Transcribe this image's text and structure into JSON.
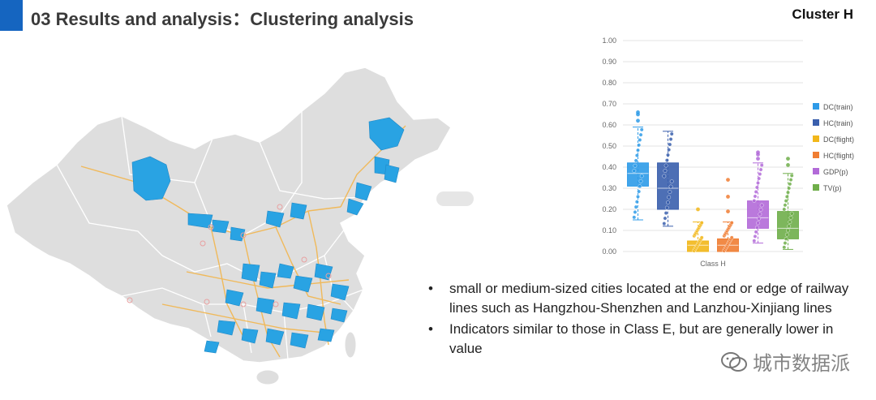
{
  "header": {
    "title": "03 Results and analysis：Clustering analysis",
    "cluster_label": "Cluster H",
    "accent_color": "#1565c0"
  },
  "map": {
    "land_color": "#dedede",
    "highlight_color": "#29a3e3",
    "railway_color": "#f2b54c"
  },
  "chart_data": {
    "type": "box",
    "xlabel": "Class H",
    "ylim": [
      0,
      1
    ],
    "yticks": [
      "0.00",
      "0.10",
      "0.20",
      "0.30",
      "0.40",
      "0.50",
      "0.60",
      "0.70",
      "0.80",
      "0.90",
      "1.00"
    ],
    "legend_position": "right",
    "series": [
      {
        "name": "DC(train)",
        "color": "#2e9be8",
        "q1": 0.31,
        "median": 0.37,
        "q3": 0.42,
        "whisker_low": 0.15,
        "whisker_high": 0.59,
        "outliers": [
          0.62,
          0.65,
          0.66
        ]
      },
      {
        "name": "HC(train)",
        "color": "#3a5fad",
        "q1": 0.2,
        "median": 0.3,
        "q3": 0.42,
        "whisker_low": 0.12,
        "whisker_high": 0.57,
        "outliers": []
      },
      {
        "name": "DC(flight)",
        "color": "#f2b71a",
        "q1": 0.0,
        "median": 0.03,
        "q3": 0.05,
        "whisker_low": 0.0,
        "whisker_high": 0.14,
        "outliers": [
          0.2
        ]
      },
      {
        "name": "HC(flight)",
        "color": "#f07d32",
        "q1": 0.0,
        "median": 0.03,
        "q3": 0.06,
        "whisker_low": 0.0,
        "whisker_high": 0.14,
        "outliers": [
          0.19,
          0.26,
          0.34
        ]
      },
      {
        "name": "GDP(p)",
        "color": "#b26ad8",
        "q1": 0.11,
        "median": 0.16,
        "q3": 0.24,
        "whisker_low": 0.04,
        "whisker_high": 0.42,
        "outliers": [
          0.44,
          0.46,
          0.47
        ]
      },
      {
        "name": "TV(p)",
        "color": "#6fae4a",
        "q1": 0.06,
        "median": 0.11,
        "q3": 0.19,
        "whisker_low": 0.01,
        "whisker_high": 0.37,
        "outliers": [
          0.41,
          0.44
        ]
      }
    ]
  },
  "bullets": [
    "small or medium-sized cities located at the end or edge of railway lines such as Hangzhou-Shenzhen and Lanzhou-Xinjiang lines",
    "Indicators similar to those in Class E, but are generally lower in value"
  ],
  "watermark": {
    "text": "城市数据派"
  }
}
